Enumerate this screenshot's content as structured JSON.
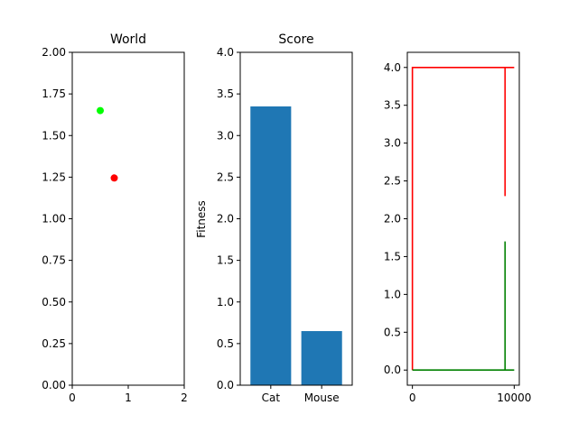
{
  "chart_data": [
    {
      "type": "scatter",
      "title": "World",
      "xlabel": "",
      "ylabel": "",
      "xlim": [
        0,
        2
      ],
      "ylim": [
        0,
        2
      ],
      "xticks": [
        "0",
        "1",
        "2"
      ],
      "yticks": [
        "0.00",
        "0.25",
        "0.50",
        "0.75",
        "1.00",
        "1.25",
        "1.50",
        "1.75",
        "2.00"
      ],
      "points": [
        {
          "x": 0.5,
          "y": 1.65,
          "color": "#00ff00"
        },
        {
          "x": 0.75,
          "y": 1.245,
          "color": "#ff0000"
        }
      ]
    },
    {
      "type": "bar",
      "title": "Score",
      "xlabel": "",
      "ylabel": "Fitness",
      "ylim": [
        0,
        4
      ],
      "categories": [
        "Cat",
        "Mouse"
      ],
      "values": [
        3.35,
        0.65
      ],
      "yticks": [
        "0.0",
        "0.5",
        "1.0",
        "1.5",
        "2.0",
        "2.5",
        "3.0",
        "3.5",
        "4.0"
      ],
      "color": "#1f77b4"
    },
    {
      "type": "line",
      "title": "",
      "xlabel": "",
      "ylabel": "",
      "xlim": [
        -500,
        10500
      ],
      "ylim": [
        -0.2,
        4.2
      ],
      "xticks": [
        {
          "value": 0,
          "label": "0"
        },
        {
          "value": 10000,
          "label": "10000"
        }
      ],
      "yticks": [
        "0.0",
        "0.5",
        "1.0",
        "1.5",
        "2.0",
        "2.5",
        "3.0",
        "3.5",
        "4.0"
      ],
      "series": [
        {
          "color": "#ff0000",
          "x": [
            9100,
            9100,
            10000,
            0,
            0
          ],
          "y": [
            2.3,
            4.0,
            4.0,
            4.0,
            0.0
          ]
        },
        {
          "color": "#008000",
          "x": [
            9100,
            9100,
            10000,
            0
          ],
          "y": [
            1.7,
            0.0,
            0.0,
            0.0
          ]
        }
      ]
    }
  ]
}
